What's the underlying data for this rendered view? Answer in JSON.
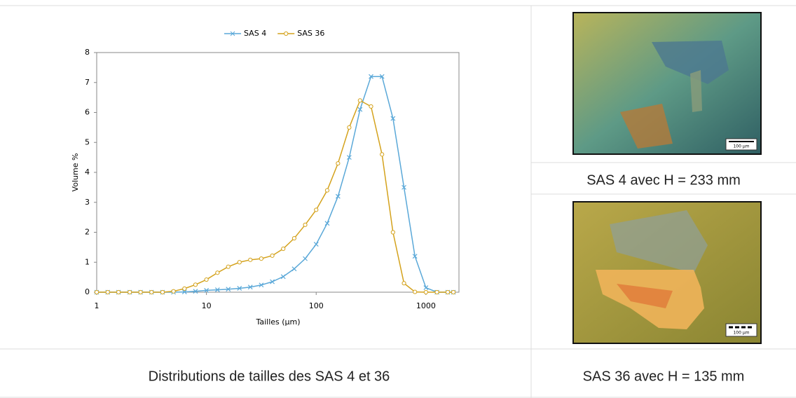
{
  "chart_data": {
    "type": "line",
    "x_label": "Tailles (µm)",
    "y_label": "Volume %",
    "x_log": true,
    "x": [
      1,
      1.26,
      1.58,
      2,
      2.51,
      3.16,
      3.98,
      5.01,
      6.31,
      7.94,
      10,
      12.6,
      15.8,
      20,
      25.1,
      31.6,
      39.8,
      50.1,
      63.1,
      79.4,
      100,
      126,
      158,
      200,
      251,
      316,
      398,
      501,
      631,
      794,
      1000,
      1260,
      1580,
      1780
    ],
    "series": [
      {
        "name": "SAS 4",
        "color": "#5aa8d8",
        "marker": "x",
        "values": [
          0,
          0,
          0,
          0,
          0,
          0,
          0,
          0,
          0.01,
          0.03,
          0.06,
          0.08,
          0.1,
          0.13,
          0.17,
          0.24,
          0.35,
          0.52,
          0.78,
          1.12,
          1.6,
          2.3,
          3.2,
          4.5,
          6.1,
          7.2,
          7.2,
          5.8,
          3.5,
          1.2,
          0.15,
          0,
          0,
          0
        ]
      },
      {
        "name": "SAS 36",
        "color": "#d4a21c",
        "marker": "circle",
        "values": [
          0,
          0,
          0,
          0,
          0,
          0,
          0,
          0.03,
          0.12,
          0.25,
          0.42,
          0.65,
          0.85,
          1.0,
          1.08,
          1.12,
          1.22,
          1.45,
          1.8,
          2.25,
          2.75,
          3.4,
          4.3,
          5.5,
          6.4,
          6.2,
          4.6,
          2.0,
          0.3,
          0.01,
          0,
          0,
          0,
          0
        ]
      }
    ],
    "xlim": [
      1,
      2000
    ],
    "xticks": [
      1,
      10,
      100,
      1000
    ],
    "ylim": [
      0,
      8
    ],
    "yticks": [
      0,
      1,
      2,
      3,
      4,
      5,
      6,
      7,
      8
    ],
    "grid": false,
    "legend": "top"
  },
  "captions": {
    "chart": "Distributions de tailles des SAS 4 et 36",
    "image_1": "SAS 4 avec H = 233 mm",
    "image_2": "SAS 36 avec H = 135 mm"
  },
  "images": [
    {
      "scale_label": "100 µm"
    },
    {
      "scale_label": "100 µm"
    }
  ]
}
